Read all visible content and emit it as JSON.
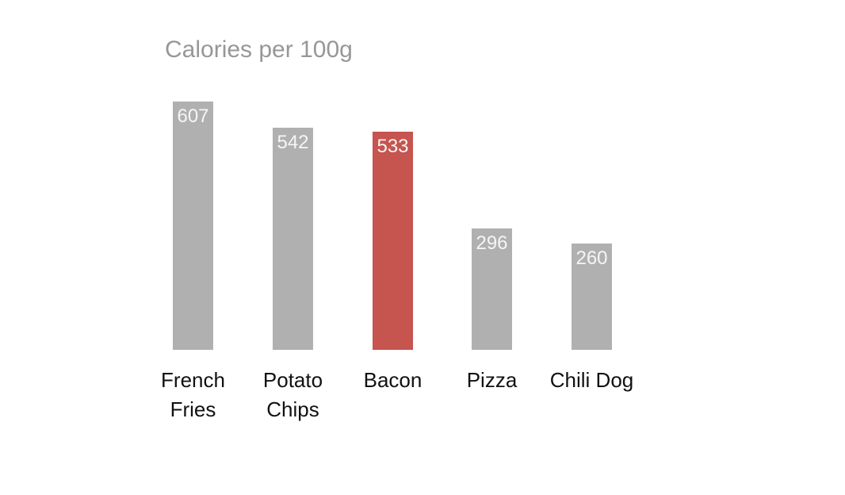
{
  "chart_data": {
    "type": "bar",
    "title": "Calories per 100g",
    "categories": [
      "French Fries",
      "Potato Chips",
      "Bacon",
      "Pizza",
      "Chili Dog"
    ],
    "values": [
      607,
      542,
      533,
      296,
      260
    ],
    "colors": [
      "#b1b0b1",
      "#b1b0b1",
      "#c6544f",
      "#b1b0b1",
      "#b1b0b1"
    ],
    "highlight_category": "Bacon",
    "bar_color": "#b1b0b1",
    "highlight_color": "#c6544f",
    "title_color": "#979797",
    "xlabel_color": "#111111",
    "value_label_color": "#f7f5f4",
    "background_color": "#ffffff",
    "xlabel": "",
    "ylabel": "",
    "ylim": [
      0,
      650
    ],
    "grid": false,
    "legend": false,
    "value_label_position": "inside-top"
  }
}
